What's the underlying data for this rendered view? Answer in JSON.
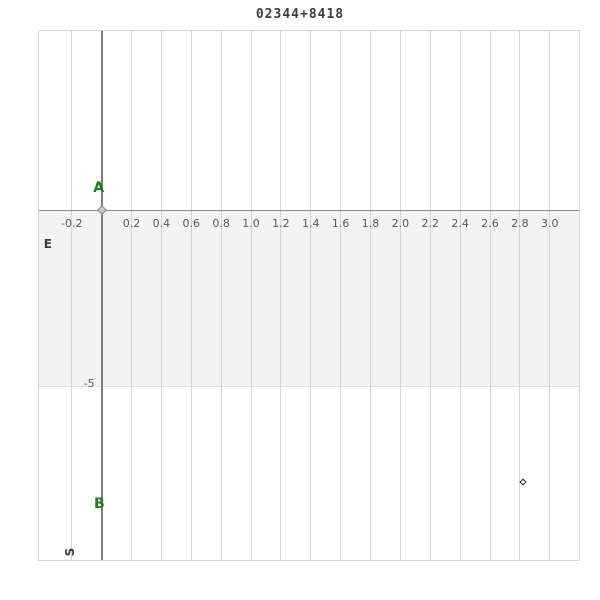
{
  "title": "02344+8418",
  "colors": {
    "background": "#ffffff",
    "gridline": "#d5d5d5",
    "zero_axis": "#7a7a7a",
    "horizontal_axis": "#8a8a8a",
    "shaded_band": "#f3f3f3",
    "tick_text": "#585858",
    "title_text": "#3c3c3c",
    "component_label": "#1a7d1a"
  },
  "chart_data": {
    "type": "scatter",
    "title": "02344+8418",
    "xlabel": "",
    "ylabel": "",
    "xlim": [
      -0.42,
      3.2
    ],
    "ylim": [
      -10.15,
      5.12
    ],
    "grid": true,
    "x_gridline_values": [
      -0.2,
      0.0,
      0.2,
      0.4,
      0.6,
      0.8,
      1.0,
      1.2,
      1.4,
      1.6,
      1.8,
      2.0,
      2.2,
      2.4,
      2.6,
      2.8,
      3.0,
      3.2
    ],
    "x_tick_labels": [
      "-0.2",
      "0.2",
      "0.4",
      "0.6",
      "0.8",
      "1.0",
      "1.2",
      "1.4",
      "1.6",
      "1.8",
      "2.0",
      "2.2",
      "2.4",
      "2.6",
      "2.8",
      "3.0"
    ],
    "x_tick_values": [
      -0.2,
      0.2,
      0.4,
      0.6,
      0.8,
      1.0,
      1.2,
      1.4,
      1.6,
      1.8,
      2.0,
      2.2,
      2.4,
      2.6,
      2.8,
      3.0
    ],
    "y_tick_labels": [
      "-5"
    ],
    "y_tick_values": [
      -5
    ],
    "shaded_band": {
      "y_from": 0,
      "y_to": -5
    },
    "axis_lines": {
      "horizontal_at_y": 0,
      "vertical_at_x": 0
    },
    "direction_labels": [
      {
        "text": "E",
        "x": -0.36,
        "y": -0.99,
        "rotated": false
      },
      {
        "text": "S",
        "x": -0.21,
        "y": -9.8,
        "rotated": true
      }
    ],
    "points": [
      {
        "label": "A",
        "x": 0.0,
        "y": 0.0,
        "marker": "diamond-filled",
        "label_x": -0.02,
        "label_y": 0.62
      },
      {
        "label": "B",
        "x": 2.82,
        "y": -7.8,
        "marker": "diamond-open",
        "label_x": -0.015,
        "label_y": -8.44
      }
    ]
  }
}
